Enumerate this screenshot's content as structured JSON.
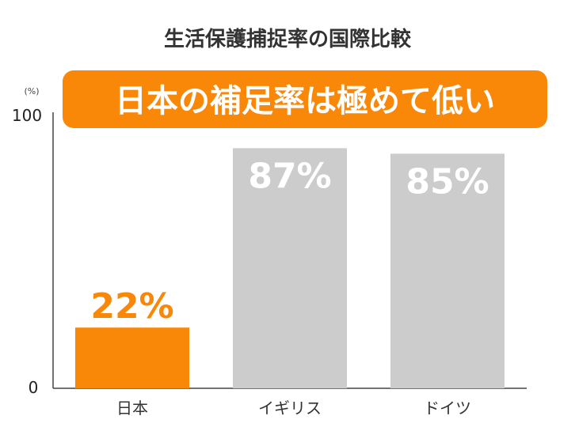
{
  "chart_data": {
    "type": "bar",
    "title": "生活保護捕捉率の国際比較",
    "annotation": "日本の補足率は極めて低い",
    "unit": "(%)",
    "categories": [
      "日本",
      "イギリス",
      "ドイツ"
    ],
    "values": [
      22,
      87,
      85
    ],
    "value_labels": [
      "22%",
      "87%",
      "85%"
    ],
    "ylim": [
      0,
      100
    ],
    "yticks": [
      "0",
      "100"
    ],
    "bar_colors": [
      "#f98708",
      "#cccccc",
      "#cccccc"
    ],
    "label_colors": [
      "#f98708",
      "#ffffff",
      "#ffffff"
    ],
    "accent_color": "#f98708",
    "grid": false
  }
}
